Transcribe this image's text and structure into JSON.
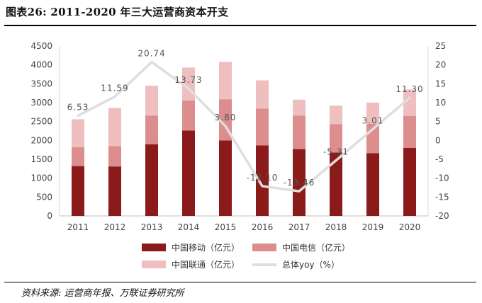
{
  "title": "图表26: 2011-2020 年三大运营商资本开支",
  "source": "资料来源: 运营商年报、万联证券研究所",
  "chart_data": {
    "type": "bar",
    "stacked": true,
    "categories": [
      "2011",
      "2012",
      "2013",
      "2014",
      "2015",
      "2016",
      "2017",
      "2018",
      "2019",
      "2020"
    ],
    "series": [
      {
        "name": "中国移动（亿元）",
        "color": "#8b1a1a",
        "values": [
          1320,
          1310,
          1900,
          2260,
          2000,
          1870,
          1770,
          1680,
          1660,
          1800
        ]
      },
      {
        "name": "中国电信（亿元）",
        "color": "#dc8e8e",
        "values": [
          500,
          540,
          760,
          800,
          1090,
          970,
          890,
          750,
          780,
          850
        ]
      },
      {
        "name": "中国联通（亿元）",
        "color": "#efbebe",
        "values": [
          740,
          1010,
          790,
          870,
          990,
          750,
          420,
          490,
          560,
          700
        ]
      }
    ],
    "line": {
      "name": "总体yoy（%）",
      "color": "#dedede",
      "axis": "right",
      "values": [
        6.53,
        11.59,
        20.74,
        13.73,
        3.8,
        -12.1,
        -13.46,
        -5.31,
        3.01,
        11.3
      ],
      "labels": [
        "6.53",
        "11.59",
        "20.74",
        "13.73",
        "3.80",
        "-12.10",
        "-13.46",
        "-5.31",
        "3.01",
        "11.30"
      ]
    },
    "ylim_left": [
      0,
      4500
    ],
    "yticks_left": [
      0,
      500,
      1000,
      1500,
      2000,
      2500,
      3000,
      3500,
      4000,
      4500
    ],
    "ylim_right": [
      -20,
      25
    ],
    "yticks_right": [
      -20,
      -15,
      -10,
      -5,
      0,
      5,
      10,
      15,
      20,
      25
    ],
    "legend_position": "bottom"
  }
}
